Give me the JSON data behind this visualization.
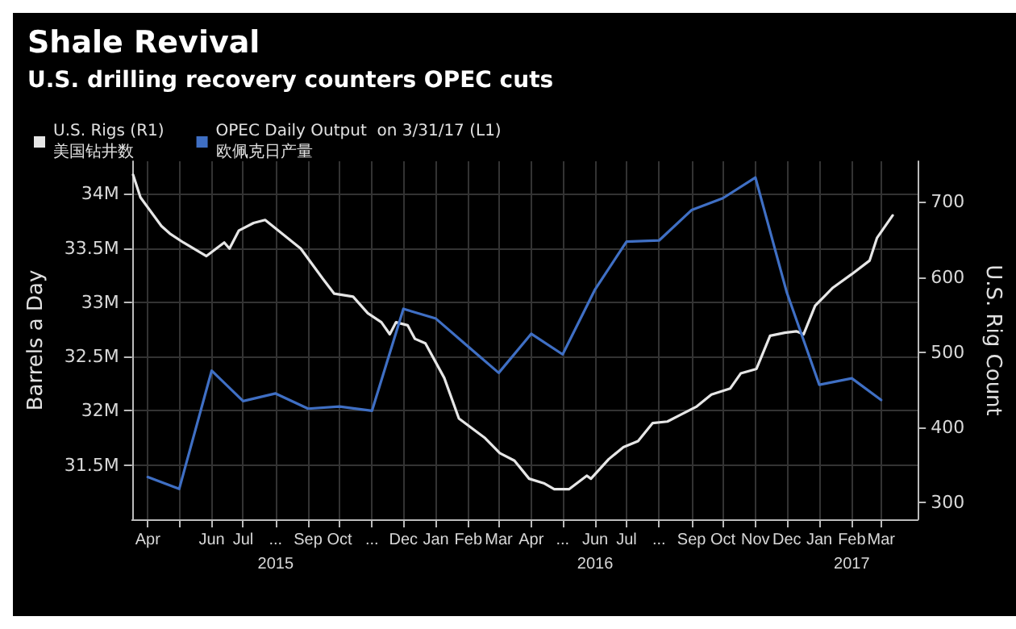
{
  "chart_data": {
    "type": "line",
    "title": "Shale Revival",
    "subtitle": "U.S. drilling recovery counters OPEC cuts",
    "ylabel": "Barrels a Day",
    "y2label": "U.S. Rig Count",
    "series": [
      {
        "name": "U.S. Rigs (R1)\n美国钻井数",
        "color": "#e6e6e6",
        "axis": "y2",
        "x": [
          "2015-03-18",
          "2015-03-25",
          "2015-04-14",
          "2015-04-22",
          "2015-05-05",
          "2015-05-27",
          "2015-06-13",
          "2015-06-18",
          "2015-06-27",
          "2015-07-11",
          "2015-07-22",
          "2015-08-25",
          "2015-09-15",
          "2015-09-26",
          "2015-10-14",
          "2015-10-28",
          "2015-11-10",
          "2015-11-18",
          "2015-11-24",
          "2015-12-05",
          "2015-12-12",
          "2015-12-22",
          "2016-01-09",
          "2016-01-23",
          "2016-02-17",
          "2016-03-02",
          "2016-03-16",
          "2016-03-30",
          "2016-04-13",
          "2016-04-23",
          "2016-05-07",
          "2016-05-24",
          "2016-05-28",
          "2016-06-14",
          "2016-06-28",
          "2016-07-12",
          "2016-07-26",
          "2016-08-09",
          "2016-08-23",
          "2016-09-06",
          "2016-09-20",
          "2016-10-08",
          "2016-10-18",
          "2016-11-02",
          "2016-11-15",
          "2016-11-29",
          "2016-12-10",
          "2016-12-17",
          "2016-12-28",
          "2017-01-14",
          "2017-02-01",
          "2017-02-18",
          "2017-02-25",
          "2017-03-12"
        ],
        "values": [
          736,
          706,
          668,
          658,
          646,
          628,
          646,
          638,
          662,
          672,
          676,
          638,
          598,
          578,
          574,
          552,
          540,
          524,
          540,
          536,
          518,
          512,
          466,
          412,
          386,
          366,
          356,
          332,
          326,
          318,
          318,
          336,
          332,
          358,
          374,
          382,
          406,
          408,
          418,
          428,
          444,
          452,
          472,
          478,
          522,
          526,
          528,
          524,
          562,
          586,
          604,
          622,
          652,
          682
        ]
      },
      {
        "name": "OPEC Daily Output  on 3/31/17 (L1)\n欧佩克日产量",
        "color": "#3f6fc4",
        "x": [
          "2015-04-01",
          "2015-05-01",
          "2015-06-01",
          "2015-07-01",
          "2015-08-01",
          "2015-09-01",
          "2015-10-01",
          "2015-11-01",
          "2015-12-01",
          "2016-01-01",
          "2016-02-01",
          "2016-03-01",
          "2016-04-01",
          "2016-05-01",
          "2016-06-01",
          "2016-07-01",
          "2016-08-01",
          "2016-09-01",
          "2016-10-01",
          "2016-11-01",
          "2016-12-01",
          "2017-01-01",
          "2017-02-01",
          "2017-03-01"
        ],
        "values": [
          31390000,
          31280000,
          32370000,
          32090000,
          32160000,
          32020000,
          32040000,
          32000000,
          32940000,
          32850000,
          32590000,
          32350000,
          32710000,
          32520000,
          33120000,
          33560000,
          33570000,
          33850000,
          33960000,
          34150000,
          33090000,
          32240000,
          32300000,
          32100000
        ]
      }
    ],
    "xlim": [
      "2015-03-17",
      "2017-04-05"
    ],
    "xticks": [
      {
        "value": "2015-04-01",
        "label": "Apr"
      },
      {
        "value": "2015-05-01",
        "label": null
      },
      {
        "value": "2015-06-01",
        "label": "Jun"
      },
      {
        "value": "2015-07-01",
        "label": "Jul"
      },
      {
        "value": "2015-08-01",
        "label": "..."
      },
      {
        "value": "2015-09-01",
        "label": "Sep"
      },
      {
        "value": "2015-10-01",
        "label": "Oct"
      },
      {
        "value": "2015-11-01",
        "label": "..."
      },
      {
        "value": "2015-12-01",
        "label": "Dec"
      },
      {
        "value": "2016-01-01",
        "label": "Jan"
      },
      {
        "value": "2016-02-01",
        "label": "Feb"
      },
      {
        "value": "2016-03-01",
        "label": "Mar"
      },
      {
        "value": "2016-04-01",
        "label": "Apr"
      },
      {
        "value": "2016-05-01",
        "label": "..."
      },
      {
        "value": "2016-06-01",
        "label": "Jun"
      },
      {
        "value": "2016-07-01",
        "label": "Jul"
      },
      {
        "value": "2016-08-01",
        "label": "..."
      },
      {
        "value": "2016-09-01",
        "label": "Sep"
      },
      {
        "value": "2016-10-01",
        "label": "Oct"
      },
      {
        "value": "2016-11-01",
        "label": "Nov"
      },
      {
        "value": "2016-12-01",
        "label": "Dec"
      },
      {
        "value": "2017-01-01",
        "label": "Jan"
      },
      {
        "value": "2017-02-01",
        "label": "Feb"
      },
      {
        "value": "2017-03-01",
        "label": "Mar"
      }
    ],
    "x2lim": [
      "2015-03-17",
      "2017-04-05"
    ],
    "x2ticks": [
      {
        "value": "2015-08-01",
        "label": "2015"
      },
      {
        "value": "2016-06-01",
        "label": "2016"
      },
      {
        "value": "2017-02-01",
        "label": "2017"
      }
    ],
    "ylim": [
      31000000,
      34300000
    ],
    "yticks": [
      {
        "value": 31500000,
        "label": "31.5M"
      },
      {
        "value": 32000000,
        "label": "32M"
      },
      {
        "value": 32500000,
        "label": "32.5M"
      },
      {
        "value": 33000000,
        "label": "33M"
      },
      {
        "value": 33500000,
        "label": "33.5M"
      },
      {
        "value": 34000000,
        "label": "34M"
      }
    ],
    "y2lim": [
      278,
      754
    ],
    "y2ticks": [
      300,
      400,
      500,
      600,
      700
    ],
    "grid": true,
    "legend": "top left",
    "marker": "none",
    "line_style": "solid"
  }
}
